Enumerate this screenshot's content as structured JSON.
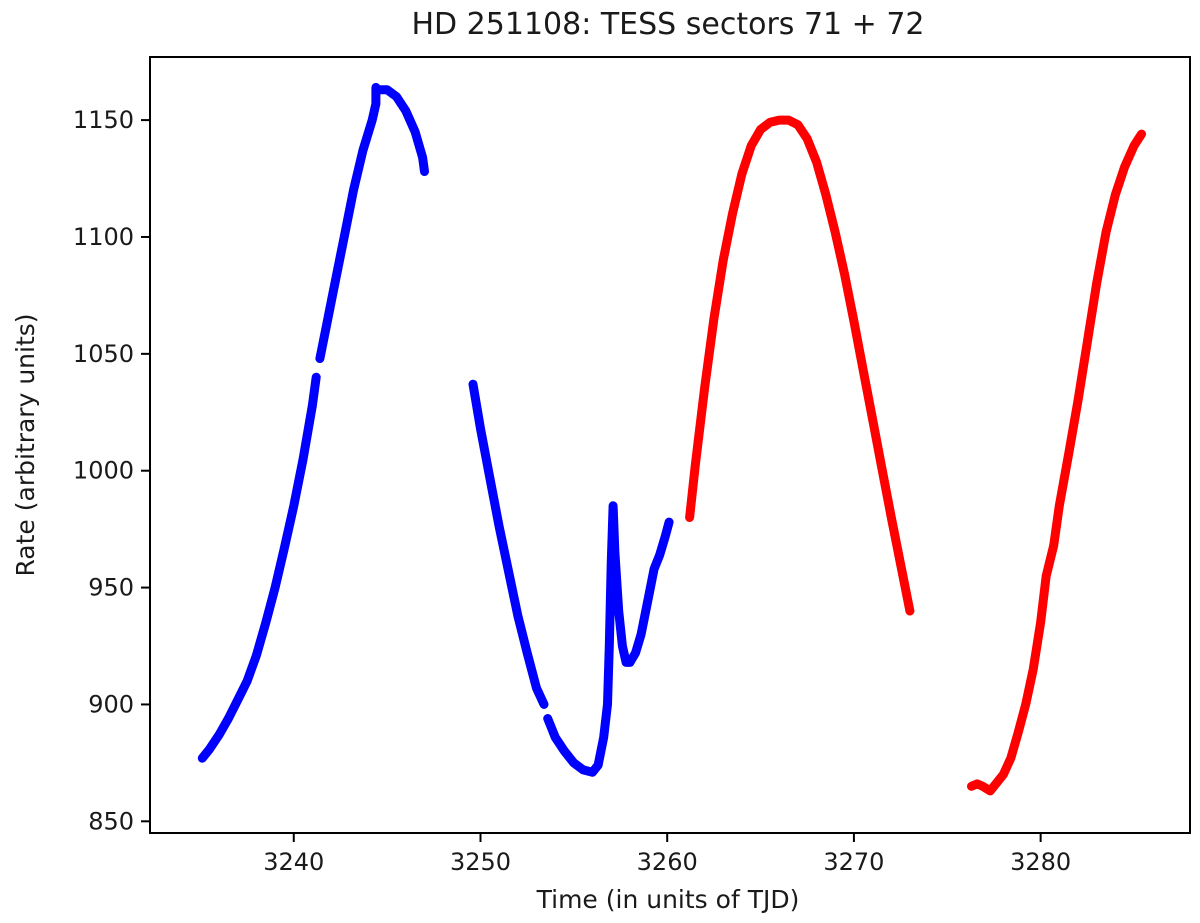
{
  "chart_data": {
    "type": "scatter",
    "title": "HD 251108:  TESS sectors 71 + 72",
    "xlabel": "Time (in units of TJD)",
    "ylabel": "Rate (arbitrary units)",
    "xlim": [
      3232.3,
      3288.0
    ],
    "ylim": [
      845,
      1177
    ],
    "xticks": [
      3240,
      3250,
      3260,
      3270,
      3280
    ],
    "yticks": [
      850,
      900,
      950,
      1000,
      1050,
      1100,
      1150
    ],
    "grid": false,
    "legend": "none",
    "series": [
      {
        "color": "#0000ff",
        "segments": [
          [
            [
              3235.1,
              877
            ],
            [
              3235.5,
              881
            ],
            [
              3236.0,
              887
            ],
            [
              3236.5,
              894
            ],
            [
              3237.0,
              902
            ],
            [
              3237.5,
              910
            ],
            [
              3238.0,
              921
            ],
            [
              3238.5,
              935
            ],
            [
              3239.0,
              950
            ],
            [
              3239.5,
              967
            ],
            [
              3240.0,
              985
            ],
            [
              3240.5,
              1005
            ],
            [
              3241.0,
              1028
            ],
            [
              3241.2,
              1040
            ]
          ],
          [
            [
              3241.4,
              1048
            ],
            [
              3241.7,
              1060
            ],
            [
              3242.2,
              1080
            ],
            [
              3242.7,
              1100
            ],
            [
              3243.2,
              1120
            ],
            [
              3243.7,
              1137
            ],
            [
              3244.2,
              1150
            ],
            [
              3244.4,
              1157
            ],
            [
              3244.4,
              1164
            ]
          ],
          [
            [
              3244.5,
              1163
            ],
            [
              3245.0,
              1163
            ],
            [
              3245.5,
              1160
            ],
            [
              3246.0,
              1154
            ],
            [
              3246.5,
              1145
            ],
            [
              3246.9,
              1134
            ],
            [
              3247.0,
              1128
            ]
          ]
        ]
      },
      {
        "color": "#0000ff",
        "segments": [
          [
            [
              3249.6,
              1037
            ],
            [
              3250.0,
              1018
            ],
            [
              3250.5,
              997
            ],
            [
              3251.0,
              976
            ],
            [
              3251.5,
              957
            ],
            [
              3252.0,
              938
            ],
            [
              3252.5,
              922
            ],
            [
              3253.0,
              907
            ],
            [
              3253.4,
              900
            ]
          ],
          [
            [
              3253.6,
              894
            ],
            [
              3254.0,
              886
            ],
            [
              3254.5,
              880
            ],
            [
              3255.0,
              875
            ],
            [
              3255.5,
              872
            ],
            [
              3256.0,
              871
            ],
            [
              3256.3,
              874
            ],
            [
              3256.6,
              886
            ],
            [
              3256.8,
              900
            ],
            [
              3256.9,
              925
            ],
            [
              3257.0,
              960
            ],
            [
              3257.1,
              985
            ],
            [
              3257.2,
              965
            ],
            [
              3257.4,
              940
            ],
            [
              3257.6,
              925
            ],
            [
              3257.8,
              918
            ],
            [
              3258.0,
              918
            ],
            [
              3258.3,
              922
            ],
            [
              3258.6,
              930
            ],
            [
              3258.9,
              942
            ],
            [
              3259.1,
              950
            ],
            [
              3259.3,
              958
            ],
            [
              3259.6,
              964
            ],
            [
              3259.9,
              972
            ],
            [
              3260.1,
              978
            ]
          ]
        ]
      },
      {
        "color": "#ff0000",
        "segments": [
          [
            [
              3261.2,
              980
            ],
            [
              3261.5,
              1002
            ],
            [
              3262.0,
              1035
            ],
            [
              3262.5,
              1065
            ],
            [
              3263.0,
              1090
            ],
            [
              3263.5,
              1110
            ],
            [
              3264.0,
              1127
            ],
            [
              3264.5,
              1139
            ],
            [
              3265.0,
              1146
            ],
            [
              3265.5,
              1149
            ],
            [
              3266.0,
              1150
            ],
            [
              3266.5,
              1150
            ],
            [
              3267.0,
              1148
            ],
            [
              3267.5,
              1142
            ],
            [
              3268.0,
              1132
            ],
            [
              3268.5,
              1118
            ],
            [
              3269.0,
              1102
            ],
            [
              3269.5,
              1084
            ],
            [
              3270.0,
              1064
            ],
            [
              3270.5,
              1043
            ],
            [
              3271.0,
              1022
            ],
            [
              3271.5,
              1001
            ],
            [
              3272.0,
              980
            ],
            [
              3272.5,
              960
            ],
            [
              3273.0,
              940
            ]
          ]
        ]
      },
      {
        "color": "#ff0000",
        "segments": [
          [
            [
              3276.3,
              865
            ],
            [
              3276.6,
              866
            ],
            [
              3276.9,
              865
            ],
            [
              3277.1,
              864
            ],
            [
              3277.3,
              863
            ],
            [
              3277.6,
              866
            ],
            [
              3278.0,
              870
            ],
            [
              3278.4,
              877
            ],
            [
              3278.8,
              888
            ],
            [
              3279.2,
              900
            ],
            [
              3279.6,
              915
            ],
            [
              3280.0,
              935
            ],
            [
              3280.3,
              955
            ],
            [
              3280.7,
              968
            ],
            [
              3281.0,
              985
            ],
            [
              3281.5,
              1007
            ],
            [
              3282.0,
              1030
            ],
            [
              3282.5,
              1055
            ],
            [
              3283.0,
              1080
            ],
            [
              3283.5,
              1102
            ],
            [
              3284.0,
              1118
            ],
            [
              3284.5,
              1130
            ],
            [
              3285.0,
              1139
            ],
            [
              3285.4,
              1144
            ]
          ]
        ]
      }
    ]
  }
}
